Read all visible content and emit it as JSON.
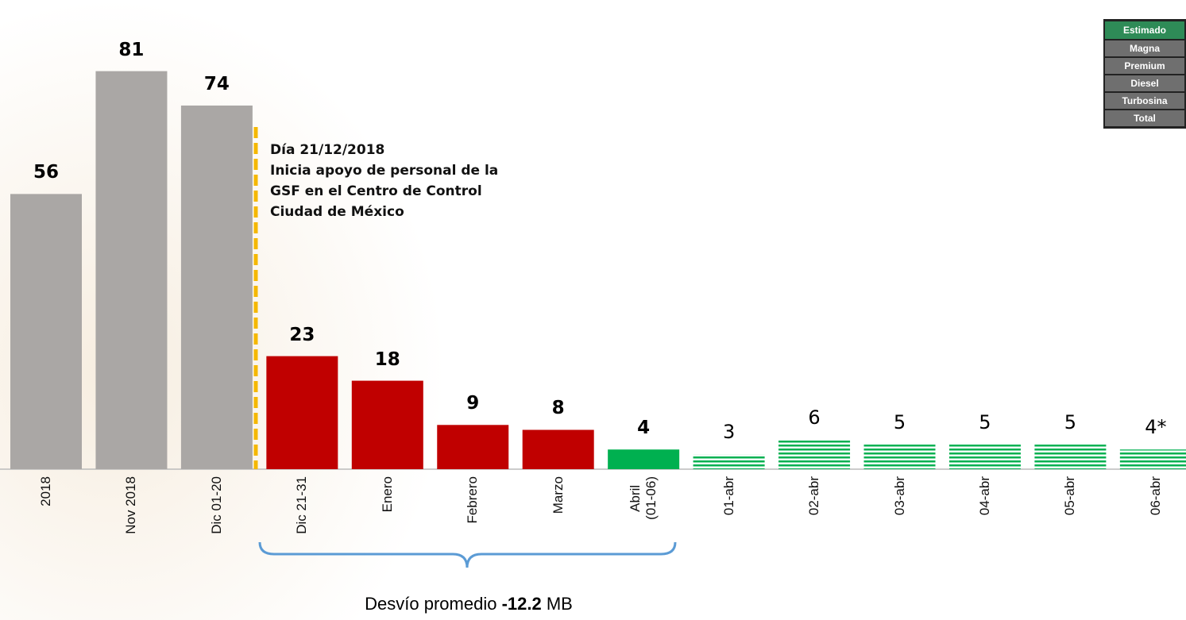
{
  "chart_data": {
    "type": "bar",
    "categories": [
      "2018",
      "Nov 2018",
      "Dic 01-20",
      "Dic 21-31",
      "Enero",
      "Febrero",
      "Marzo",
      "Abril\n(01-06)",
      "01-abr",
      "02-abr",
      "03-abr",
      "04-abr",
      "05-abr",
      "06-abr"
    ],
    "values": [
      56,
      81,
      74,
      23,
      18,
      9,
      8,
      4,
      3,
      6,
      5,
      5,
      5,
      4
    ],
    "value_labels": [
      "56",
      "81",
      "74",
      "23",
      "18",
      "9",
      "8",
      "4",
      "3",
      "6",
      "5",
      "5",
      "5",
      "4*"
    ],
    "colors": [
      "#aaa7a5",
      "#aaa7a5",
      "#aaa7a5",
      "#c00000",
      "#c00000",
      "#c00000",
      "#c00000",
      "#00b050",
      "#00b050",
      "#00b050",
      "#00b050",
      "#00b050",
      "#00b050",
      "#00b050"
    ],
    "bar_fill": [
      "solid",
      "solid",
      "solid",
      "solid",
      "solid",
      "solid",
      "solid",
      "solid",
      "hatched",
      "hatched",
      "hatched",
      "hatched",
      "hatched",
      "hatched"
    ],
    "annotation": "Día 21/12/2018\nInicia apoyo de personal de la\nGSF en el Centro de Control\nCiudad de México",
    "brace_label": {
      "prefix": "Desvío promedio",
      "value": -12.2,
      "unit": "MB"
    },
    "legend_box": [
      "Estimado",
      "Magna",
      "Premium",
      "Diesel",
      "Turbosina",
      "Total"
    ]
  }
}
